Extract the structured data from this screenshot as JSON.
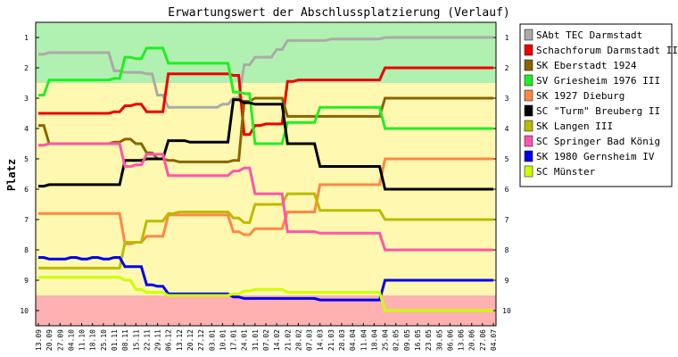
{
  "chart_data": {
    "type": "line",
    "title": "Erwartungswert der Abschlussplatzierung (Verlauf)",
    "ylabel": "Platz",
    "xlabel": "",
    "ylim": [
      0.5,
      10.5
    ],
    "y_inverted": true,
    "yticks": [
      "1",
      "2",
      "3",
      "4",
      "5",
      "6",
      "7",
      "8",
      "9",
      "10"
    ],
    "grid": false,
    "legend_position": "right",
    "bands": [
      {
        "from": 0.5,
        "to": 2.5,
        "color": "#b0f0b0"
      },
      {
        "from": 2.5,
        "to": 9.5,
        "color": "#fff8b0"
      },
      {
        "from": 9.5,
        "to": 10.5,
        "color": "#ffb0b0"
      }
    ],
    "x": [
      "13.09",
      "20.09",
      "27.09",
      "04.10",
      "11.10",
      "18.10",
      "25.10",
      "01.11",
      "08.11",
      "15.11",
      "22.11",
      "29.11",
      "06.12",
      "13.12",
      "20.12",
      "27.12",
      "03.01",
      "10.01",
      "17.01",
      "24.01",
      "31.01",
      "07.02",
      "14.02",
      "21.02",
      "28.02",
      "07.03",
      "14.03",
      "21.03",
      "28.03",
      "04.04",
      "11.04",
      "18.04",
      "25.04",
      "02.05",
      "09.05",
      "16.05",
      "23.05",
      "30.05",
      "06.06",
      "13.06",
      "20.06",
      "27.06",
      "04.07"
    ],
    "series": [
      {
        "name": "SAbt TEC Darmstadt",
        "color": "#aaaaaa",
        "values": [
          1.55,
          1.5,
          1.5,
          1.5,
          1.5,
          1.5,
          1.5,
          2.1,
          2.15,
          2.15,
          2.2,
          2.9,
          3.3,
          3.3,
          3.3,
          3.3,
          3.3,
          3.2,
          3.0,
          1.9,
          1.65,
          1.65,
          1.4,
          1.1,
          1.1,
          1.1,
          1.1,
          1.05,
          1.05,
          1.05,
          1.05,
          1.05,
          1.0,
          1.0,
          1.0,
          1.0,
          1.0,
          1.0,
          1.0,
          1.0,
          1.0,
          1.0,
          1.0
        ]
      },
      {
        "name": "Schachforum Darmstadt III",
        "color": "#ee0000",
        "values": [
          3.5,
          3.5,
          3.5,
          3.5,
          3.5,
          3.5,
          3.5,
          3.45,
          3.25,
          3.2,
          3.45,
          3.45,
          2.2,
          2.2,
          2.2,
          2.2,
          2.2,
          2.2,
          2.25,
          4.2,
          3.9,
          3.85,
          3.85,
          2.45,
          2.4,
          2.4,
          2.4,
          2.4,
          2.4,
          2.4,
          2.4,
          2.4,
          2.0,
          2.0,
          2.0,
          2.0,
          2.0,
          2.0,
          2.0,
          2.0,
          2.0,
          2.0,
          2.0
        ]
      },
      {
        "name": "SK Eberstadt 1924",
        "color": "#886600",
        "values": [
          3.9,
          4.5,
          4.5,
          4.5,
          4.5,
          4.5,
          4.5,
          4.45,
          4.35,
          4.5,
          4.8,
          5.0,
          5.05,
          5.1,
          5.1,
          5.1,
          5.1,
          5.1,
          5.05,
          3.1,
          3.0,
          3.0,
          3.0,
          3.6,
          3.6,
          3.6,
          3.6,
          3.6,
          3.6,
          3.6,
          3.6,
          3.6,
          3.0,
          3.0,
          3.0,
          3.0,
          3.0,
          3.0,
          3.0,
          3.0,
          3.0,
          3.0,
          3.0
        ]
      },
      {
        "name": "SV Griesheim 1976 III",
        "color": "#22ee22",
        "values": [
          2.9,
          2.4,
          2.4,
          2.4,
          2.4,
          2.4,
          2.4,
          2.35,
          1.65,
          1.7,
          1.35,
          1.35,
          1.85,
          1.85,
          1.85,
          1.85,
          1.85,
          1.85,
          2.8,
          2.85,
          4.5,
          4.5,
          4.5,
          3.8,
          3.8,
          3.8,
          3.3,
          3.3,
          3.3,
          3.3,
          3.3,
          3.3,
          4.0,
          4.0,
          4.0,
          4.0,
          4.0,
          4.0,
          4.0,
          4.0,
          4.0,
          4.0,
          4.0
        ]
      },
      {
        "name": "SK 1927 Dieburg",
        "color": "#ff8844",
        "values": [
          6.8,
          6.8,
          6.8,
          6.8,
          6.8,
          6.8,
          6.8,
          6.8,
          7.8,
          7.75,
          7.55,
          7.55,
          6.85,
          6.85,
          6.85,
          6.85,
          6.85,
          6.85,
          7.4,
          7.5,
          7.3,
          7.3,
          7.3,
          6.75,
          6.75,
          6.75,
          5.85,
          5.85,
          5.85,
          5.85,
          5.85,
          5.85,
          5.0,
          5.0,
          5.0,
          5.0,
          5.0,
          5.0,
          5.0,
          5.0,
          5.0,
          5.0,
          5.0
        ]
      },
      {
        "name": "SC \"Turm\" Breuberg II",
        "color": "#000000",
        "values": [
          5.9,
          5.85,
          5.85,
          5.85,
          5.85,
          5.85,
          5.85,
          5.85,
          5.05,
          5.05,
          5.0,
          5.0,
          4.4,
          4.4,
          4.45,
          4.45,
          4.45,
          4.45,
          3.05,
          3.15,
          3.2,
          3.2,
          3.2,
          4.5,
          4.5,
          4.5,
          5.25,
          5.25,
          5.25,
          5.25,
          5.25,
          5.25,
          6.0,
          6.0,
          6.0,
          6.0,
          6.0,
          6.0,
          6.0,
          6.0,
          6.0,
          6.0,
          6.0
        ]
      },
      {
        "name": "SK Langen III",
        "color": "#bbbb00",
        "values": [
          8.6,
          8.6,
          8.6,
          8.6,
          8.6,
          8.6,
          8.6,
          8.6,
          7.75,
          7.75,
          7.05,
          7.05,
          6.8,
          6.75,
          6.75,
          6.75,
          6.75,
          6.75,
          6.95,
          7.1,
          6.5,
          6.5,
          6.5,
          6.15,
          6.15,
          6.15,
          6.7,
          6.7,
          6.7,
          6.7,
          6.7,
          6.7,
          7.0,
          7.0,
          7.0,
          7.0,
          7.0,
          7.0,
          7.0,
          7.0,
          7.0,
          7.0,
          7.0
        ]
      },
      {
        "name": "SC Springer Bad König",
        "color": "#ff55aa",
        "values": [
          4.55,
          4.5,
          4.5,
          4.5,
          4.5,
          4.5,
          4.5,
          4.5,
          5.25,
          5.2,
          4.85,
          4.85,
          5.55,
          5.55,
          5.55,
          5.55,
          5.55,
          5.55,
          5.4,
          5.3,
          6.15,
          6.15,
          6.15,
          7.4,
          7.4,
          7.4,
          7.45,
          7.45,
          7.45,
          7.45,
          7.45,
          7.45,
          8.0,
          8.0,
          8.0,
          8.0,
          8.0,
          8.0,
          8.0,
          8.0,
          8.0,
          8.0,
          8.0
        ]
      },
      {
        "name": "SK 1980 Gernsheim IV",
        "color": "#0000ee",
        "values": [
          8.25,
          8.3,
          8.3,
          8.25,
          8.3,
          8.25,
          8.3,
          8.25,
          8.55,
          8.55,
          9.15,
          9.2,
          9.45,
          9.45,
          9.45,
          9.45,
          9.45,
          9.45,
          9.55,
          9.6,
          9.6,
          9.6,
          9.6,
          9.6,
          9.6,
          9.6,
          9.65,
          9.65,
          9.65,
          9.65,
          9.65,
          9.65,
          9.0,
          9.0,
          9.0,
          9.0,
          9.0,
          9.0,
          9.0,
          9.0,
          9.0,
          9.0,
          9.0
        ]
      },
      {
        "name": "SC Münster",
        "color": "#ccff00",
        "values": [
          8.9,
          8.9,
          8.9,
          8.9,
          8.9,
          8.9,
          8.9,
          8.9,
          9.0,
          9.3,
          9.4,
          9.4,
          9.5,
          9.5,
          9.5,
          9.5,
          9.5,
          9.5,
          9.45,
          9.35,
          9.3,
          9.3,
          9.3,
          9.4,
          9.4,
          9.4,
          9.4,
          9.4,
          9.4,
          9.4,
          9.4,
          9.4,
          10.0,
          10.0,
          10.0,
          10.0,
          10.0,
          10.0,
          10.0,
          10.0,
          10.0,
          10.0,
          10.0
        ]
      }
    ]
  }
}
